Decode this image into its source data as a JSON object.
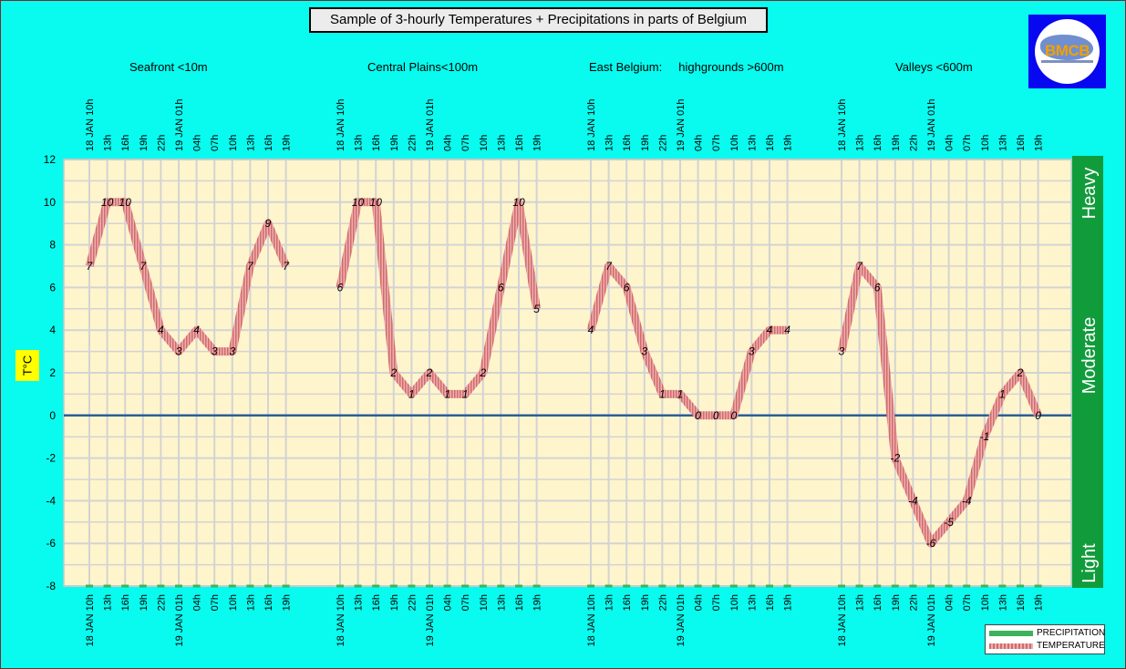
{
  "title": "Sample of 3-hourly Temperatures + Precipitations in parts of Belgium",
  "logo_text": "BMCB",
  "regions": [
    {
      "label": "Seafront <10m"
    },
    {
      "label": "Central Plains<100m"
    },
    {
      "label": "East Belgium:     highgrounds >600m"
    },
    {
      "label": "Valleys <600m"
    }
  ],
  "y_axis_label": "T°C",
  "precip_scale": [
    "Heavy",
    "Moderate",
    "Light"
  ],
  "legend": {
    "precipitation": "PRECIPITATION",
    "temperature": "TEMPERATURE"
  },
  "colors": {
    "background": "#08fbee",
    "plot_area": "#fff5cc",
    "grid": "#d3d3d3",
    "temperature_line": "#e8999b",
    "temperature_stripe": "#c0504d",
    "precipitation": "#3cb35a",
    "zero_line": "#2e5d9a",
    "band": "#119c3b"
  },
  "chart_data": {
    "type": "line",
    "ylim": [
      -8,
      12
    ],
    "yticks": [
      -8,
      -6,
      -4,
      -2,
      0,
      2,
      4,
      6,
      8,
      10,
      12
    ],
    "grid": true,
    "legend_position": "bottom-right",
    "groups": [
      {
        "name": "Seafront <10m",
        "x": [
          "18 JAN 10h",
          "13h",
          "16h",
          "19h",
          "22h",
          "19 JAN 01h",
          "04h",
          "07h",
          "10h",
          "13h",
          "16h",
          "19h"
        ],
        "temperature": [
          7,
          10,
          10,
          7,
          4,
          3,
          4,
          3,
          3,
          7,
          9,
          7
        ]
      },
      {
        "name": "Central Plains<100m",
        "x": [
          "18 JAN 10h",
          "13h",
          "16h",
          "19h",
          "22h",
          "19 JAN 01h",
          "04h",
          "07h",
          "10h",
          "13h",
          "16h",
          "19h"
        ],
        "temperature": [
          6,
          10,
          10,
          2,
          1,
          2,
          1,
          1,
          2,
          6,
          10,
          5
        ]
      },
      {
        "name": "East Belgium:     highgrounds >600m",
        "x": [
          "18 JAN 10h",
          "13h",
          "16h",
          "19h",
          "22h",
          "19 JAN 01h",
          "04h",
          "07h",
          "10h",
          "13h",
          "16h",
          "19h"
        ],
        "temperature": [
          4,
          7,
          6,
          3,
          1,
          1,
          0,
          0,
          0,
          3,
          4,
          4
        ]
      },
      {
        "name": "Valleys <600m",
        "x": [
          "18 JAN 10h",
          "13h",
          "16h",
          "19h",
          "22h",
          "19 JAN 01h",
          "04h",
          "07h",
          "10h",
          "13h",
          "16h",
          "19h"
        ],
        "temperature": [
          3,
          7,
          6,
          -2,
          -4,
          -6,
          -5,
          -4,
          -1,
          1,
          2,
          0
        ]
      }
    ]
  }
}
